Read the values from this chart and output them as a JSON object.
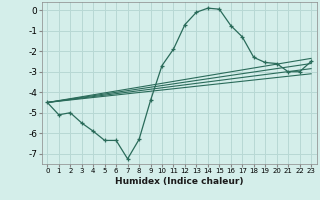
{
  "xlabel": "Humidex (Indice chaleur)",
  "bg_color": "#d4eeea",
  "grid_color": "#b8d8d4",
  "line_color": "#2a6b5a",
  "xlim": [
    -0.5,
    23.5
  ],
  "ylim": [
    -7.5,
    0.4
  ],
  "xticks": [
    0,
    1,
    2,
    3,
    4,
    5,
    6,
    7,
    8,
    9,
    10,
    11,
    12,
    13,
    14,
    15,
    16,
    17,
    18,
    19,
    20,
    21,
    22,
    23
  ],
  "yticks": [
    0,
    -1,
    -2,
    -3,
    -4,
    -5,
    -6,
    -7
  ],
  "main_x": [
    0,
    1,
    2,
    3,
    4,
    5,
    6,
    7,
    8,
    9,
    10,
    11,
    12,
    13,
    14,
    15,
    16,
    17,
    18,
    19,
    20,
    21,
    22,
    23
  ],
  "main_y": [
    -4.5,
    -5.1,
    -5.0,
    -5.5,
    -5.9,
    -6.35,
    -6.35,
    -7.25,
    -6.3,
    -4.4,
    -2.7,
    -1.9,
    -0.7,
    -0.1,
    0.1,
    0.05,
    -0.75,
    -1.3,
    -2.3,
    -2.55,
    -2.6,
    -3.0,
    -3.0,
    -2.5
  ],
  "line1_x": [
    0,
    23
  ],
  "line1_y": [
    -4.5,
    -2.35
  ],
  "line2_x": [
    0,
    23
  ],
  "line2_y": [
    -4.5,
    -2.6
  ],
  "line3_x": [
    0,
    23
  ],
  "line3_y": [
    -4.5,
    -2.85
  ],
  "line4_x": [
    0,
    23
  ],
  "line4_y": [
    -4.5,
    -3.1
  ]
}
